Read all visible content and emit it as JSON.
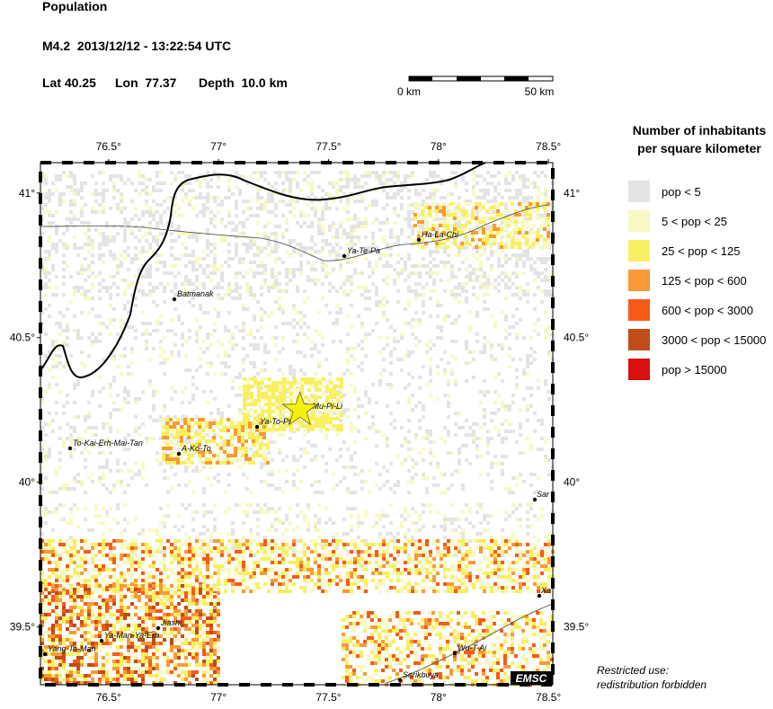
{
  "header": {
    "title": "Population",
    "event": "M4.2  2013/12/12 - 13:22:54 UTC",
    "lat": "Lat 40.25",
    "lon": "Lon  77.37",
    "depth": "Depth  10.0 km"
  },
  "scale_bar": {
    "start": "0 km",
    "end": "50 km"
  },
  "epicenter": {
    "lat": 40.25,
    "lon": 77.37
  },
  "map": {
    "xlim": [
      76.19,
      78.52
    ],
    "ylim": [
      39.3,
      41.105
    ],
    "xticks": [
      {
        "value": 76.5,
        "label": "76.5°"
      },
      {
        "value": 77,
        "label": "77°"
      },
      {
        "value": 77.5,
        "label": "77.5°"
      },
      {
        "value": 78,
        "label": "78°"
      },
      {
        "value": 78.5,
        "label": "78.5°"
      }
    ],
    "yticks": [
      {
        "value": 39.5,
        "label": "39.5°"
      },
      {
        "value": 40,
        "label": "40°"
      },
      {
        "value": 40.5,
        "label": "40.5°"
      },
      {
        "value": 41,
        "label": "41°"
      }
    ],
    "places": [
      "Ya-Te-Pa",
      "Ha-La-Chi",
      "Batmanak",
      "Jih-Mu-Pi-Li",
      "Ya-To-Pi",
      "A-Ko-To",
      "To-Kai-Erh-Mai-Tan",
      "Sar",
      "Xa",
      "Jiashi",
      "Ya-Man-Ya-Erh",
      "Yang-Ta-Man",
      "Wu-T-Ai",
      "Serikbuya"
    ]
  },
  "legend": {
    "title_line1": "Number of inhabitants",
    "title_line2": "per square kilometer",
    "items": [
      {
        "label": "pop < 5",
        "color": "#e4e4e4"
      },
      {
        "label": "5 < pop < 25",
        "color": "#f8f8c4"
      },
      {
        "label": "25 < pop < 125",
        "color": "#f8f060"
      },
      {
        "label": "125 < pop < 600",
        "color": "#f89a38"
      },
      {
        "label": "600 < pop < 3000",
        "color": "#f85a18"
      },
      {
        "label": "3000 < pop < 15000",
        "color": "#c04c18"
      },
      {
        "label": "pop > 15000",
        "color": "#d81010"
      }
    ]
  },
  "logo": "EMSC",
  "notice": {
    "line1": "Restricted use:",
    "line2": "redistribution forbidden"
  }
}
